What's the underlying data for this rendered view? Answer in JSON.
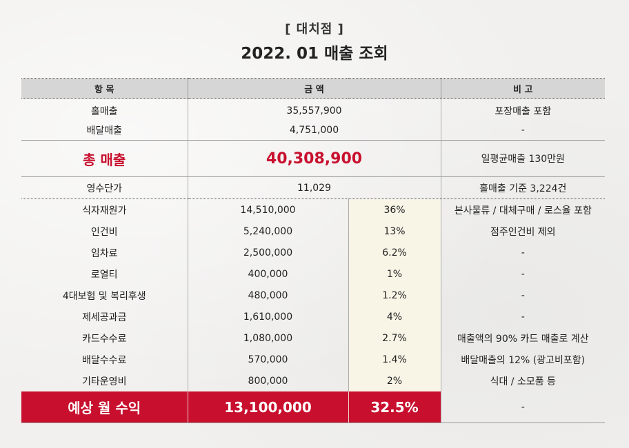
{
  "header": {
    "store": "[  대치점  ]",
    "title": "2022. 01 매출 조회"
  },
  "columns": {
    "item": "항 목",
    "amount": "금 액",
    "note": "비 고"
  },
  "sales": [
    {
      "item": "홀매출",
      "amount": "35,557,900",
      "note": "포장매출 포함"
    },
    {
      "item": "배달매출",
      "amount": "4,751,000",
      "note": "-"
    }
  ],
  "total_sales": {
    "label": "총 매출",
    "amount": "40,308,900",
    "note": "일평균매출 130만원"
  },
  "unit_price": {
    "label": "영수단가",
    "amount": "11,029",
    "note": "홀매출 기준 3,224건"
  },
  "expenses": [
    {
      "item": "식자재원가",
      "amount": "14,510,000",
      "pct": "36%",
      "note": "본사물류 / 대체구매 / 로스율 포함"
    },
    {
      "item": "인건비",
      "amount": "5,240,000",
      "pct": "13%",
      "note": "점주인건비 제외"
    },
    {
      "item": "임차료",
      "amount": "2,500,000",
      "pct": "6.2%",
      "note": "-"
    },
    {
      "item": "로열티",
      "amount": "400,000",
      "pct": "1%",
      "note": "-"
    },
    {
      "item": "4대보험 및 복리후생",
      "amount": "480,000",
      "pct": "1.2%",
      "note": "-"
    },
    {
      "item": "제세공과금",
      "amount": "1,610,000",
      "pct": "4%",
      "note": "-"
    },
    {
      "item": "카드수수료",
      "amount": "1,080,000",
      "pct": "2.7%",
      "note": "매출액의 90% 카드 매출로 계산"
    },
    {
      "item": "배달수수료",
      "amount": "570,000",
      "pct": "1.4%",
      "note": "배달매출의 12% (광고비포함)"
    },
    {
      "item": "기타운영비",
      "amount": "800,000",
      "pct": "2%",
      "note": "식대 / 소모품 등"
    }
  ],
  "profit": {
    "label": "예상 월 수익",
    "amount": "13,100,000",
    "pct": "32.5%",
    "note": "-"
  },
  "colors": {
    "accent_red": "#c8102e",
    "header_gray": "#d6d6d6"
  }
}
